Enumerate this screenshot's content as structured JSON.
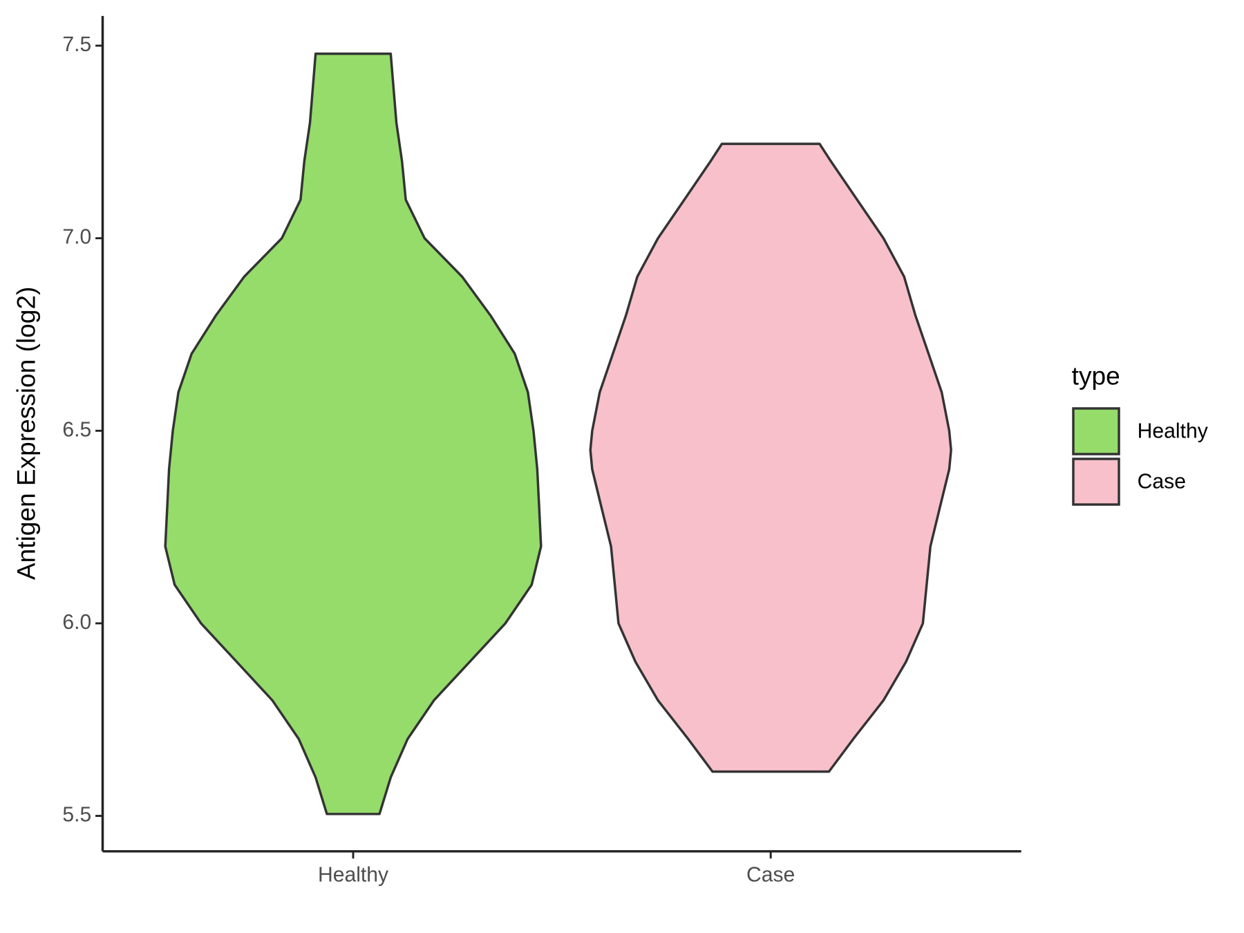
{
  "chart_data": {
    "type": "violin",
    "y_label": "Antigen Expression (log2)",
    "categories": [
      "Healthy",
      "Case"
    ],
    "legend_title": "type",
    "legend_position": "right",
    "series": [
      {
        "name": "Healthy",
        "color": "#95dc6b",
        "y": [
          5.505,
          5.6,
          5.7,
          5.8,
          5.9,
          6.0,
          6.1,
          6.2,
          6.3,
          6.4,
          6.5,
          6.6,
          6.7,
          6.8,
          6.9,
          7.0,
          7.1,
          7.2,
          7.3,
          7.479
        ],
        "density": [
          0.14,
          0.2,
          0.29,
          0.43,
          0.62,
          0.81,
          0.95,
          1.0,
          0.99,
          0.98,
          0.96,
          0.93,
          0.86,
          0.73,
          0.58,
          0.38,
          0.28,
          0.26,
          0.23,
          0.2
        ]
      },
      {
        "name": "Case",
        "color": "#f7c0cb",
        "y": [
          5.615,
          5.7,
          5.8,
          5.9,
          6.0,
          6.1,
          6.2,
          6.3,
          6.4,
          6.45,
          6.5,
          6.6,
          6.7,
          6.8,
          6.9,
          7.0,
          7.1,
          7.2,
          7.245
        ],
        "density": [
          0.31,
          0.44,
          0.6,
          0.72,
          0.81,
          0.83,
          0.85,
          0.9,
          0.95,
          0.96,
          0.95,
          0.91,
          0.84,
          0.77,
          0.71,
          0.6,
          0.46,
          0.32,
          0.26
        ]
      }
    ],
    "ylim": [
      5.408,
      7.577
    ],
    "yticks": [
      {
        "value": 5.5,
        "label": "5.5"
      },
      {
        "value": 6.0,
        "label": "6.0"
      },
      {
        "value": 6.5,
        "label": "6.5"
      },
      {
        "value": 7.0,
        "label": "7.0"
      },
      {
        "value": 7.5,
        "label": "7.5"
      }
    ],
    "grid": false
  }
}
